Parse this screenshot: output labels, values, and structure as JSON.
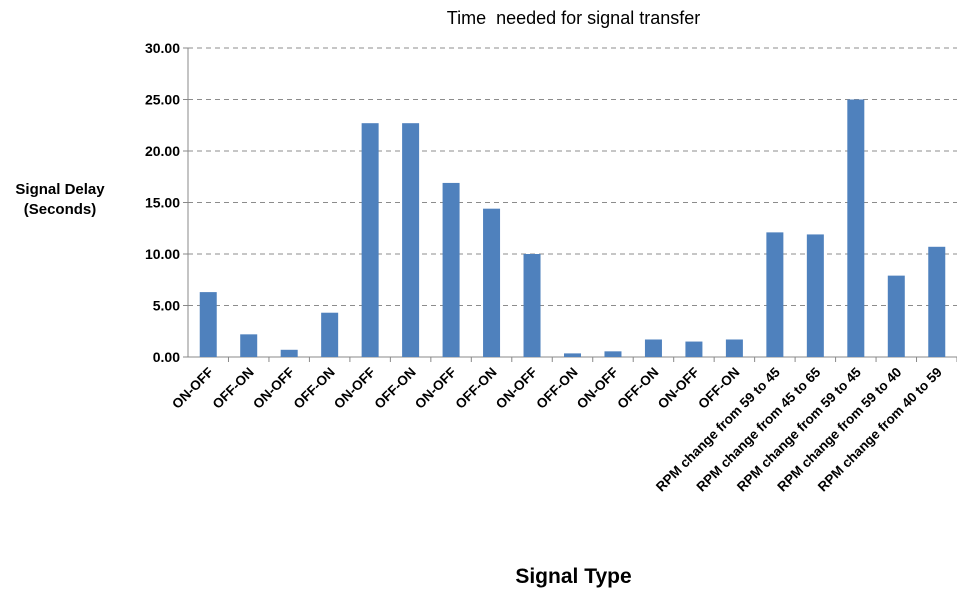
{
  "chart_data": {
    "type": "bar",
    "title": "Time  needed for signal transfer",
    "ylabel_lines": [
      "Signal Delay",
      "(Seconds)"
    ],
    "xlabel": "Signal Type",
    "ylim": [
      0,
      30
    ],
    "yticks": [
      "0.00",
      "5.00",
      "10.00",
      "15.00",
      "20.00",
      "25.00",
      "30.00"
    ],
    "grid": "dashed horizontal",
    "bar_color": "#4f81bd",
    "categories": [
      "ON-OFF",
      "OFF-ON",
      "ON-OFF",
      "OFF-ON",
      "ON-OFF",
      "OFF-ON",
      "ON-OFF",
      "OFF-ON",
      "ON-OFF",
      "OFF-ON",
      "ON-OFF",
      "OFF-ON",
      "ON-OFF",
      "OFF-ON",
      "RPM change  from 59 to 45",
      "RPM change from 45 to 65",
      "RPM change from 59 to 45",
      "RPM change from 59 to 40",
      "RPM change from 40 to 59"
    ],
    "values": [
      6.3,
      2.2,
      0.7,
      4.3,
      22.7,
      22.7,
      16.9,
      14.4,
      10.0,
      0.35,
      0.55,
      1.7,
      1.5,
      1.7,
      12.1,
      11.9,
      25.0,
      7.9,
      10.7
    ]
  }
}
